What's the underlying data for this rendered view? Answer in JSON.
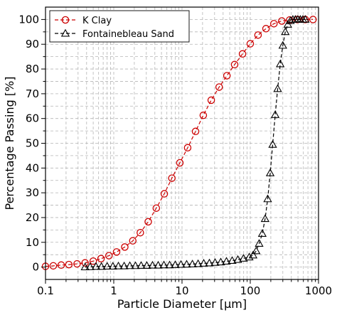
{
  "chart_data": {
    "type": "line",
    "xscale": "log",
    "xlabel": "Particle Diameter [μm]",
    "ylabel": "Percentage Passing [%]",
    "xlim": [
      0.1,
      1000
    ],
    "ylim": [
      -5,
      105
    ],
    "x_ticks": [
      {
        "value": 0.1,
        "label": "0.1"
      },
      {
        "value": 1,
        "label": "1"
      },
      {
        "value": 10,
        "label": "10"
      },
      {
        "value": 100,
        "label": "100"
      },
      {
        "value": 1000,
        "label": "1000"
      }
    ],
    "y_ticks": [
      0,
      10,
      20,
      30,
      40,
      50,
      60,
      70,
      80,
      90,
      100
    ],
    "grid": true,
    "legend": "top-left",
    "series": [
      {
        "name": "K Clay",
        "color": "#cc0000",
        "linestyle": "dashed",
        "marker": "circle",
        "points": [
          [
            0.1,
            0.3
          ],
          [
            0.13,
            0.5
          ],
          [
            0.17,
            0.8
          ],
          [
            0.22,
            1.0
          ],
          [
            0.29,
            1.3
          ],
          [
            0.38,
            1.7
          ],
          [
            0.5,
            2.4
          ],
          [
            0.65,
            3.4
          ],
          [
            0.85,
            4.6
          ],
          [
            1.1,
            6.1
          ],
          [
            1.45,
            8.1
          ],
          [
            1.9,
            10.6
          ],
          [
            2.45,
            13.9
          ],
          [
            3.2,
            18.3
          ],
          [
            4.2,
            23.8
          ],
          [
            5.5,
            29.6
          ],
          [
            7.1,
            35.9
          ],
          [
            9.3,
            42.1
          ],
          [
            12.1,
            48.2
          ],
          [
            15.8,
            54.8
          ],
          [
            20.5,
            61.3
          ],
          [
            26.8,
            67.4
          ],
          [
            35.0,
            72.7
          ],
          [
            45.5,
            77.3
          ],
          [
            59.0,
            81.8
          ],
          [
            77.0,
            86.1
          ],
          [
            100,
            90.2
          ],
          [
            130,
            93.7
          ],
          [
            170,
            96.3
          ],
          [
            222,
            98.3
          ],
          [
            290,
            99.4
          ],
          [
            378,
            99.8
          ],
          [
            490,
            100.0
          ],
          [
            640,
            100.0
          ],
          [
            830,
            100.0
          ]
        ]
      },
      {
        "name": "Fontainebleau Sand",
        "color": "#000000",
        "linestyle": "dashed",
        "marker": "triangle-open",
        "points": [
          [
            0.38,
            0.0
          ],
          [
            0.45,
            0.1
          ],
          [
            0.55,
            0.2
          ],
          [
            0.66,
            0.2
          ],
          [
            0.8,
            0.3
          ],
          [
            0.97,
            0.3
          ],
          [
            1.17,
            0.4
          ],
          [
            1.42,
            0.4
          ],
          [
            1.72,
            0.5
          ],
          [
            2.08,
            0.5
          ],
          [
            2.52,
            0.6
          ],
          [
            3.05,
            0.6
          ],
          [
            3.7,
            0.7
          ],
          [
            4.48,
            0.7
          ],
          [
            5.43,
            0.8
          ],
          [
            6.58,
            0.8
          ],
          [
            7.97,
            0.9
          ],
          [
            9.65,
            1.0
          ],
          [
            11.7,
            1.1
          ],
          [
            14.2,
            1.2
          ],
          [
            17.2,
            1.3
          ],
          [
            20.8,
            1.5
          ],
          [
            25.2,
            1.6
          ],
          [
            30.5,
            1.8
          ],
          [
            37.0,
            2.0
          ],
          [
            44.8,
            2.3
          ],
          [
            54.3,
            2.6
          ],
          [
            65.8,
            3.0
          ],
          [
            79.7,
            3.5
          ],
          [
            96.5,
            4.0
          ],
          [
            110,
            4.8
          ],
          [
            122,
            6.5
          ],
          [
            135,
            9.5
          ],
          [
            150,
            13.5
          ],
          [
            165,
            19.5
          ],
          [
            180,
            27.5
          ],
          [
            196,
            38.0
          ],
          [
            213,
            49.5
          ],
          [
            232,
            61.5
          ],
          [
            252,
            72.0
          ],
          [
            275,
            82.0
          ],
          [
            300,
            89.5
          ],
          [
            326,
            95.0
          ],
          [
            355,
            98.0
          ],
          [
            387,
            99.5
          ],
          [
            421,
            100.0
          ],
          [
            458,
            100.0
          ],
          [
            498,
            100.0
          ],
          [
            542,
            100.0
          ],
          [
            590,
            100.0
          ],
          [
            640,
            100.0
          ]
        ]
      }
    ]
  }
}
